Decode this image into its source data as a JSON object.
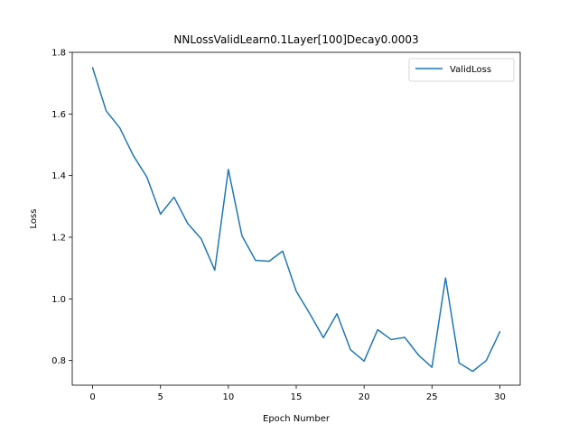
{
  "chart_data": {
    "type": "line",
    "title": "NNLossValidLearn0.1Layer[100]Decay0.0003",
    "xlabel": "Epoch Number",
    "ylabel": "Loss",
    "xlim": [
      -1.5,
      31.5
    ],
    "ylim": [
      0.72,
      1.8
    ],
    "xticks": [
      0,
      5,
      10,
      15,
      20,
      25,
      30
    ],
    "yticks": [
      0.8,
      1.0,
      1.2,
      1.4,
      1.6,
      1.8
    ],
    "grid": false,
    "legend_position": "top-right",
    "series": [
      {
        "name": "ValidLoss",
        "color": "#1f77b4",
        "x": [
          0,
          1,
          2,
          3,
          4,
          5,
          6,
          7,
          8,
          9,
          10,
          11,
          12,
          13,
          14,
          15,
          16,
          17,
          18,
          19,
          20,
          21,
          22,
          23,
          24,
          25,
          26,
          27,
          28,
          29,
          30
        ],
        "values": [
          1.75,
          1.61,
          1.555,
          1.465,
          1.395,
          1.275,
          1.33,
          1.245,
          1.195,
          1.093,
          1.42,
          1.205,
          1.125,
          1.122,
          1.155,
          1.025,
          0.952,
          0.874,
          0.952,
          0.835,
          0.798,
          0.9,
          0.868,
          0.875,
          0.818,
          0.778,
          1.068,
          0.792,
          0.765,
          0.8,
          0.893
        ]
      }
    ]
  }
}
